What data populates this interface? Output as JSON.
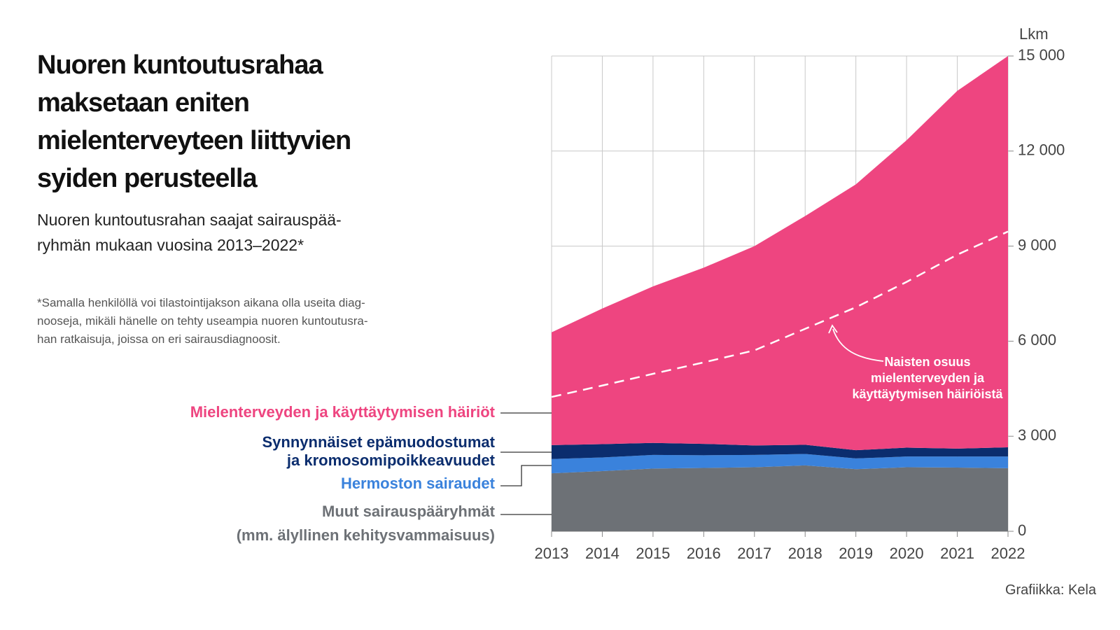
{
  "chart_data": {
    "type": "stacked-area",
    "title": "Nuoren kuntoutusrahaa\nmaksetaan eniten\nmielenterveyteen liittyvien\nsyiden perusteella",
    "subtitle": "Nuoren kuntoutusrahan saajat sairauspää-\nryhmän mukaan vuosina 2013–2022*",
    "note": "*Samalla henkilöllä voi tilastointijakson aikana olla useita diag-\nnooseja, mikäli hänelle on tehty useampia nuoren kuntoutusra-\nhan ratkaisuja, joissa on eri sairausdiagnoosit.",
    "y_label": "Lkm",
    "source": "Grafiikka: Kela",
    "categories": [
      "2013",
      "2014",
      "2015",
      "2016",
      "2017",
      "2018",
      "2019",
      "2020",
      "2021",
      "2022"
    ],
    "series": [
      {
        "name": "Muut sairauspääryhmät\n(mm. älyllinen kehitysvammaisuus)",
        "color": "#6d7176",
        "values": [
          1830,
          1900,
          1980,
          2000,
          2020,
          2080,
          1960,
          2020,
          2010,
          1990
        ]
      },
      {
        "name": "Hermoston sairaudet",
        "color": "#3a82dc",
        "values": [
          450,
          430,
          430,
          400,
          390,
          360,
          340,
          340,
          350,
          370
        ]
      },
      {
        "name": "Synnynnäiset epämuodostumat\nja kromosomipoikkeavuudet",
        "color": "#0b2d6e",
        "values": [
          440,
          420,
          380,
          360,
          300,
          290,
          260,
          280,
          250,
          290
        ]
      },
      {
        "name": "Mielenterveyden ja käyttäytymisen häiriöt",
        "color": "#ee4580",
        "values": [
          3560,
          4280,
          4940,
          5560,
          6290,
          7220,
          8390,
          9700,
          11290,
          12350
        ]
      }
    ],
    "line_series": {
      "name": "Naisten osuus\nmielenterveyden ja\nkäyttäytymisen häiriöistä",
      "color": "#ffffff",
      "dashed": true,
      "values": [
        4240,
        4600,
        4970,
        5330,
        5710,
        6390,
        7070,
        7870,
        8730,
        9460
      ]
    },
    "ylim": [
      0,
      15000
    ],
    "yticks": [
      0,
      {
        "value": 3000,
        "label": "3 000"
      },
      {
        "value": 6000,
        "label": "6 000"
      },
      {
        "value": 9000,
        "label": "9 000"
      },
      {
        "value": 12000,
        "label": "12 000"
      },
      {
        "value": 15000,
        "label": "15 000"
      }
    ],
    "grid": true
  }
}
